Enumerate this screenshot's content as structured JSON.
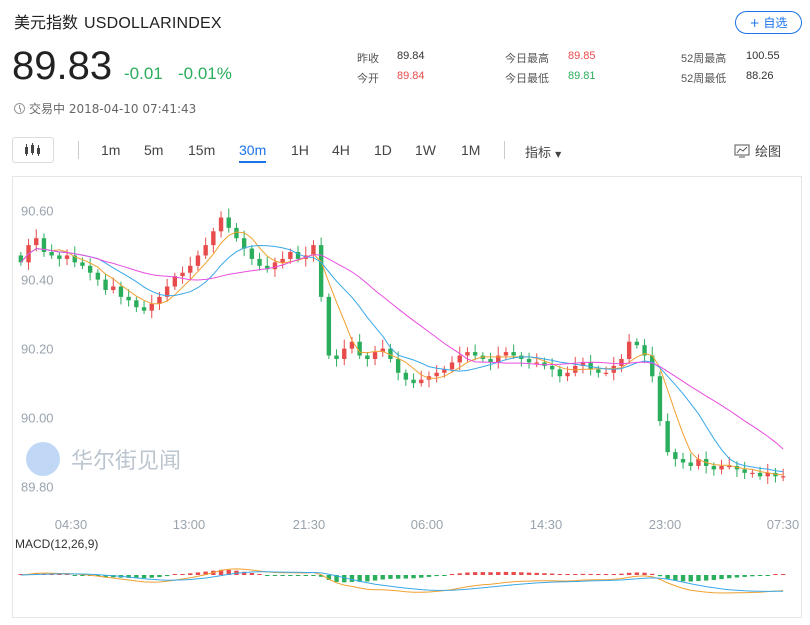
{
  "header": {
    "name": "美元指数",
    "code": "USDOLLARINDEX",
    "follow_label": "+ 自选"
  },
  "quote": {
    "price": "89.83",
    "change": "-0.01",
    "change_pct": "-0.01%",
    "status": "交易中 2018-04-10 07:41:43"
  },
  "stats": {
    "prev_close_label": "昨收",
    "prev_close": "89.84",
    "open_label": "今开",
    "open": "89.84",
    "high_label": "今日最高",
    "high": "89.85",
    "low_label": "今日最低",
    "low": "89.81",
    "w52_high_label": "52周最高",
    "w52_high": "100.55",
    "w52_low_label": "52周最低",
    "w52_low": "88.26"
  },
  "toolbar": {
    "timeframes": [
      "1m",
      "5m",
      "15m",
      "30m",
      "1H",
      "4H",
      "1D",
      "1W",
      "1M"
    ],
    "active": "30m",
    "indicator_label": "指标",
    "draw_label": "绘图"
  },
  "watermark": "华尔街见闻",
  "colors": {
    "up": "#e84b4b",
    "down": "#2bae5c",
    "accent": "#1a73e8",
    "ma_short": "#f0a030",
    "ma_mid": "#3aa8e8",
    "ma_long": "#e84ee0"
  },
  "chart_data": {
    "type": "candlestick",
    "y_ticks": [
      "90.60",
      "90.40",
      "90.20",
      "90.00",
      "89.80"
    ],
    "x_ticks": [
      "04:30",
      "13:00",
      "21:30",
      "06:00",
      "14:30",
      "23:00",
      "07:30"
    ],
    "ylim": [
      89.77,
      90.68
    ],
    "macd_label": "MACD(12,26,9)",
    "closes": [
      90.45,
      90.5,
      90.52,
      90.48,
      90.47,
      90.46,
      90.47,
      90.45,
      90.44,
      90.42,
      90.4,
      90.37,
      90.38,
      90.35,
      90.34,
      90.32,
      90.31,
      90.33,
      90.35,
      90.38,
      90.41,
      90.42,
      90.44,
      90.47,
      90.5,
      90.54,
      90.58,
      90.55,
      90.52,
      90.49,
      90.46,
      90.44,
      90.43,
      90.45,
      90.46,
      90.48,
      90.46,
      90.47,
      90.5,
      90.35,
      90.18,
      90.17,
      90.2,
      90.22,
      90.18,
      90.17,
      90.19,
      90.2,
      90.17,
      90.13,
      90.11,
      90.1,
      90.11,
      90.12,
      90.13,
      90.14,
      90.16,
      90.18,
      90.19,
      90.18,
      90.17,
      90.16,
      90.18,
      90.19,
      90.18,
      90.17,
      90.16,
      90.16,
      90.15,
      90.14,
      90.12,
      90.13,
      90.15,
      90.16,
      90.14,
      90.13,
      90.13,
      90.15,
      90.17,
      90.22,
      90.21,
      90.18,
      90.12,
      89.99,
      89.9,
      89.88,
      89.87,
      89.86,
      89.88,
      89.86,
      89.85,
      89.86,
      89.86,
      89.85,
      89.84,
      89.84,
      89.83,
      89.84,
      89.83,
      89.83
    ]
  }
}
